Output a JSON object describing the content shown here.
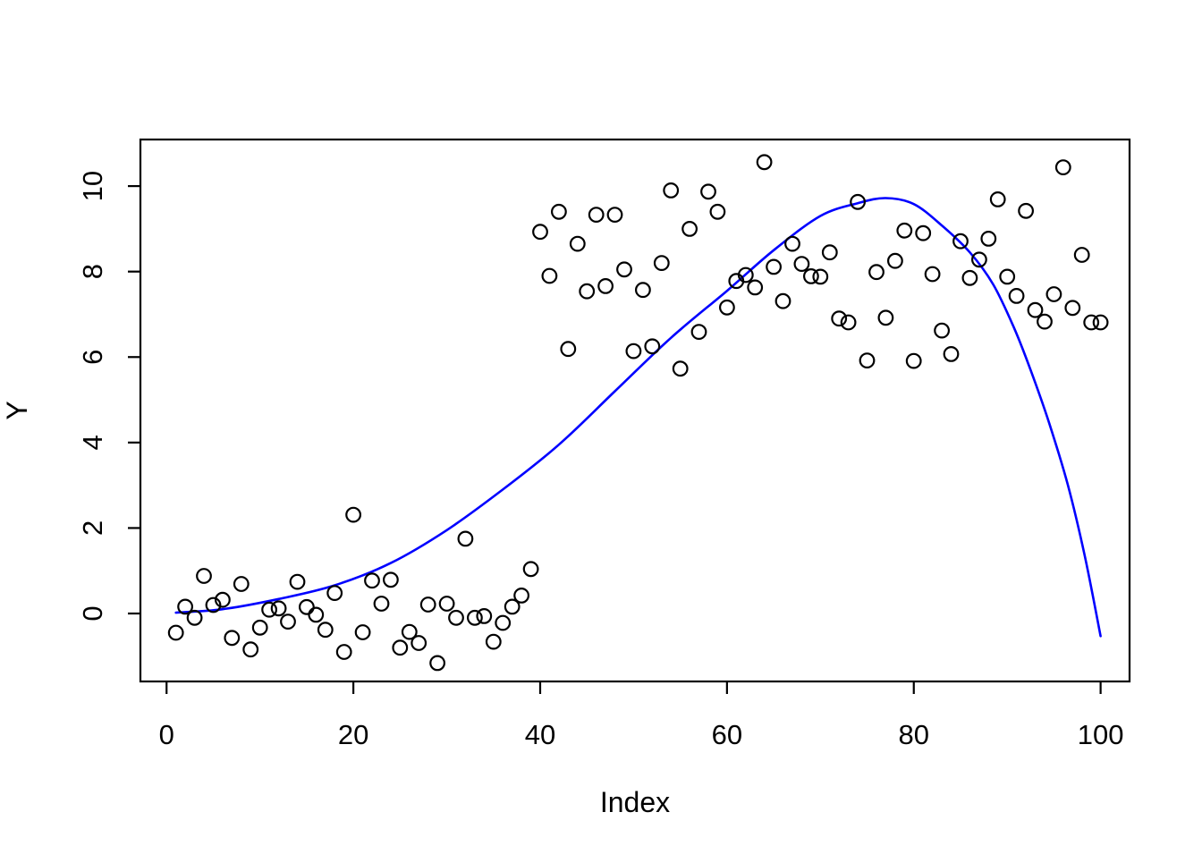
{
  "chart_data": {
    "type": "scatter",
    "title": "",
    "xlabel": "Index",
    "ylabel": "Y",
    "x_ticks": [
      0,
      20,
      40,
      60,
      80,
      100
    ],
    "y_ticks": [
      0,
      2,
      4,
      6,
      8,
      10
    ],
    "xlim": [
      -2.8,
      103.1
    ],
    "ylim": [
      -1.59,
      11.09
    ],
    "grid": false,
    "legend_position": "none",
    "series": [
      {
        "name": "observations",
        "type": "points",
        "marker": "open-circle",
        "color": "#000000",
        "x": [
          1,
          2,
          3,
          4,
          5,
          6,
          7,
          8,
          9,
          10,
          11,
          12,
          13,
          14,
          15,
          16,
          17,
          18,
          19,
          20,
          21,
          22,
          23,
          24,
          25,
          26,
          27,
          28,
          29,
          30,
          31,
          32,
          33,
          34,
          35,
          36,
          37,
          38,
          39,
          40,
          41,
          42,
          43,
          44,
          45,
          46,
          47,
          48,
          49,
          50,
          51,
          52,
          53,
          54,
          55,
          56,
          57,
          58,
          59,
          60,
          61,
          62,
          63,
          64,
          65,
          66,
          67,
          68,
          69,
          70,
          71,
          72,
          73,
          74,
          75,
          76,
          77,
          78,
          79,
          80,
          81,
          82,
          83,
          84,
          85,
          86,
          87,
          88,
          89,
          90,
          91,
          92,
          93,
          94,
          95,
          96,
          97,
          98,
          99,
          100
        ],
        "y": [
          -0.45,
          0.16,
          -0.1,
          0.88,
          0.2,
          0.32,
          -0.57,
          0.69,
          -0.84,
          -0.33,
          0.09,
          0.12,
          -0.19,
          0.74,
          0.15,
          -0.03,
          -0.38,
          0.48,
          -0.9,
          2.31,
          -0.44,
          0.77,
          0.23,
          0.79,
          -0.8,
          -0.43,
          -0.69,
          0.21,
          -1.16,
          0.23,
          -0.1,
          1.75,
          -0.1,
          -0.06,
          -0.66,
          -0.22,
          0.16,
          0.42,
          1.04,
          8.93,
          7.9,
          9.4,
          6.19,
          8.65,
          7.54,
          9.33,
          7.66,
          9.33,
          8.05,
          6.14,
          7.57,
          6.25,
          8.2,
          9.9,
          5.73,
          9.0,
          6.59,
          9.87,
          9.4,
          7.16,
          7.78,
          7.92,
          7.63,
          10.56,
          8.11,
          7.31,
          8.65,
          8.18,
          7.89,
          7.88,
          8.45,
          6.9,
          6.81,
          9.63,
          5.92,
          7.99,
          6.92,
          8.25,
          8.96,
          5.91,
          8.9,
          7.94,
          6.62,
          6.07,
          8.71,
          7.85,
          8.28,
          8.77,
          9.69,
          7.88,
          7.43,
          9.42,
          7.1,
          6.83,
          7.47,
          10.44,
          7.15,
          8.39,
          6.81,
          6.81
        ]
      },
      {
        "name": "fitted-curve",
        "type": "line",
        "color": "#0000FF",
        "x": [
          1,
          6,
          12,
          18,
          24,
          30,
          36,
          42,
          48,
          54,
          60,
          65,
          70,
          74,
          77,
          80,
          83,
          86,
          88.5,
          90.7,
          92.5,
          94.5,
          96.5,
          98.3,
          100
        ],
        "y": [
          0.02,
          0.1,
          0.34,
          0.66,
          1.18,
          1.95,
          2.9,
          3.95,
          5.2,
          6.45,
          7.55,
          8.5,
          9.3,
          9.6,
          9.72,
          9.58,
          9.08,
          8.45,
          7.7,
          6.7,
          5.7,
          4.45,
          3.0,
          1.35,
          -0.53
        ]
      }
    ]
  },
  "colors": {
    "background": "#FFFFFF",
    "axis": "#000000",
    "points": "#000000",
    "curve": "#0000FF"
  }
}
